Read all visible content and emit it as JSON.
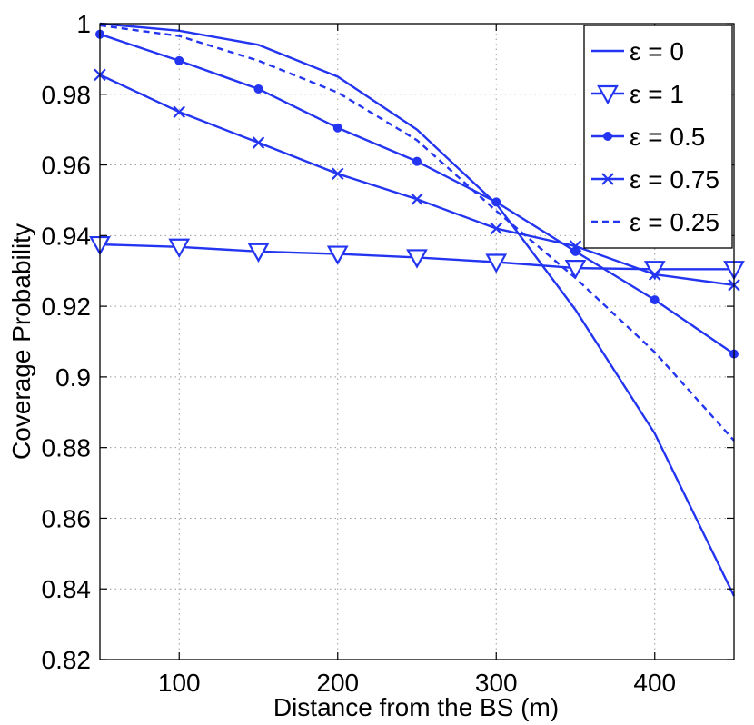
{
  "chart_data": {
    "type": "line",
    "title": "",
    "xlabel": "Distance from the BS (m)",
    "ylabel": "Coverage Probability",
    "xlim": [
      50,
      450
    ],
    "ylim": [
      0.82,
      1.0
    ],
    "xticks": [
      100,
      200,
      300,
      400
    ],
    "xtick_labels": [
      "100",
      "200",
      "300",
      "400"
    ],
    "yticks": [
      0.82,
      0.84,
      0.86,
      0.88,
      0.9,
      0.92,
      0.94,
      0.96,
      0.98,
      1.0
    ],
    "ytick_labels": [
      "0.82",
      "0.84",
      "0.86",
      "0.88",
      "0.9",
      "0.92",
      "0.94",
      "0.96",
      "0.98",
      "1"
    ],
    "grid": true,
    "legend_position": "top-right",
    "line_color": "#2335f0",
    "x": [
      50,
      100,
      150,
      200,
      250,
      300,
      350,
      400,
      450
    ],
    "series": [
      {
        "name": "ε = 0",
        "marker": "none",
        "dash": "solid",
        "values": [
          1.0,
          0.998,
          0.994,
          0.985,
          0.97,
          0.949,
          0.919,
          0.884,
          0.838
        ]
      },
      {
        "name": "ε = 1",
        "marker": "triangle-down",
        "dash": "solid",
        "values": [
          0.9375,
          0.9368,
          0.9355,
          0.9348,
          0.9338,
          0.9325,
          0.9308,
          0.9305,
          0.9305
        ]
      },
      {
        "name": "ε = 0.5",
        "marker": "dot",
        "dash": "solid",
        "values": [
          0.997,
          0.9895,
          0.9815,
          0.9705,
          0.961,
          0.9495,
          0.9355,
          0.9218,
          0.9065
        ]
      },
      {
        "name": "ε = 0.75",
        "marker": "x",
        "dash": "solid",
        "values": [
          0.9855,
          0.975,
          0.9663,
          0.9575,
          0.9503,
          0.942,
          0.937,
          0.929,
          0.926
        ]
      },
      {
        "name": "ε = 0.25",
        "marker": "none",
        "dash": "dashed",
        "values": [
          0.9995,
          0.9965,
          0.9895,
          0.9805,
          0.967,
          0.947,
          0.928,
          0.907,
          0.882
        ]
      }
    ]
  }
}
